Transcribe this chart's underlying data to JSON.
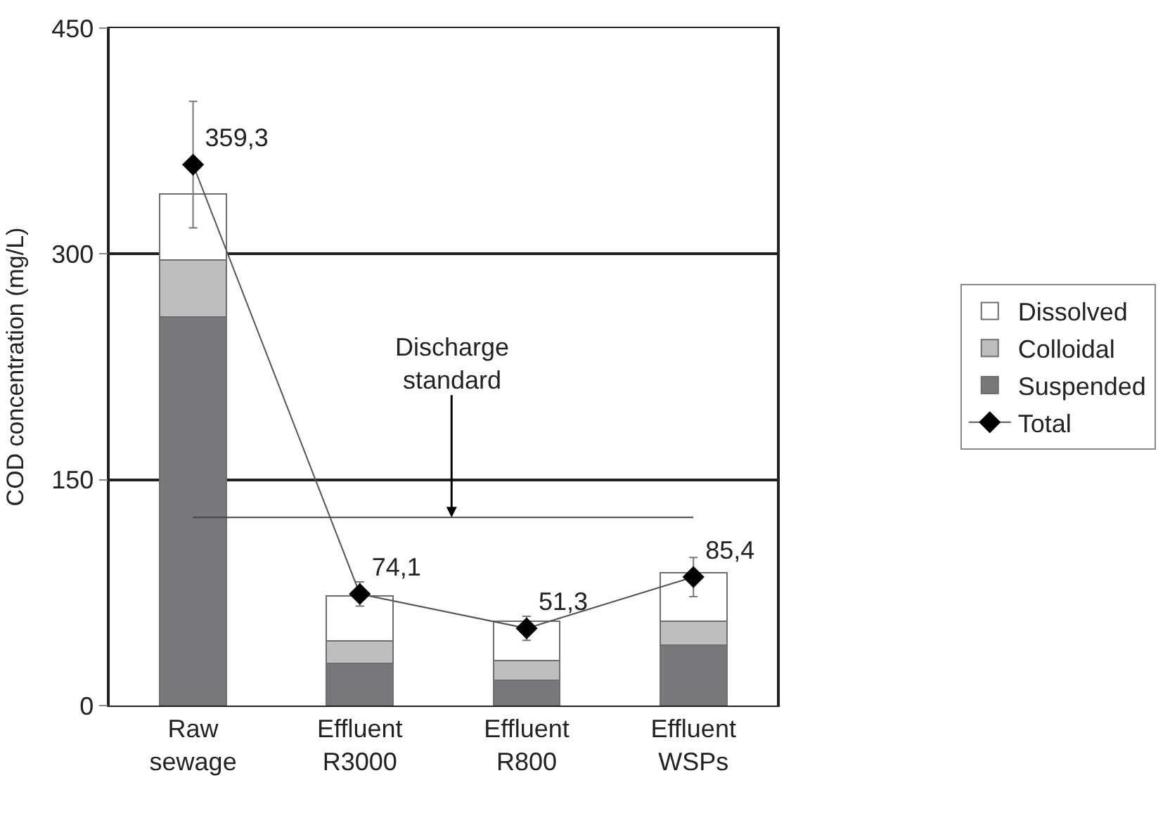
{
  "chart_data": {
    "type": "bar",
    "stacked": true,
    "ylabel": "COD concentration (mg/L)",
    "categories": [
      "Raw\nsewage",
      "Effluent\nR3000",
      "Effluent\nR800",
      "Effluent\nWSPs"
    ],
    "series": [
      {
        "name": "Suspended",
        "color": "#77787b",
        "values": [
          258,
          28,
          17,
          40
        ]
      },
      {
        "name": "Colloidal",
        "color": "#bdbec0",
        "values": [
          38,
          15,
          13,
          16
        ]
      },
      {
        "name": "Dissolved",
        "color": "#ffffff",
        "values": [
          44,
          30,
          26,
          32
        ]
      },
      {
        "name": "Total",
        "type": "line",
        "color": "#000000",
        "marker": "diamond",
        "values": [
          359.3,
          74.1,
          51.3,
          85.4
        ],
        "errors": [
          42,
          8,
          8,
          13
        ],
        "value_labels": [
          "359,3",
          "74,1",
          "51,3",
          "85,4"
        ]
      }
    ],
    "ylim": [
      0,
      450
    ],
    "yticks": [
      0,
      150,
      300,
      450
    ],
    "grid": "y",
    "legend": "right",
    "ref_lines": [
      {
        "axis": "y",
        "value": 125,
        "label": "Discharge standard"
      }
    ]
  }
}
